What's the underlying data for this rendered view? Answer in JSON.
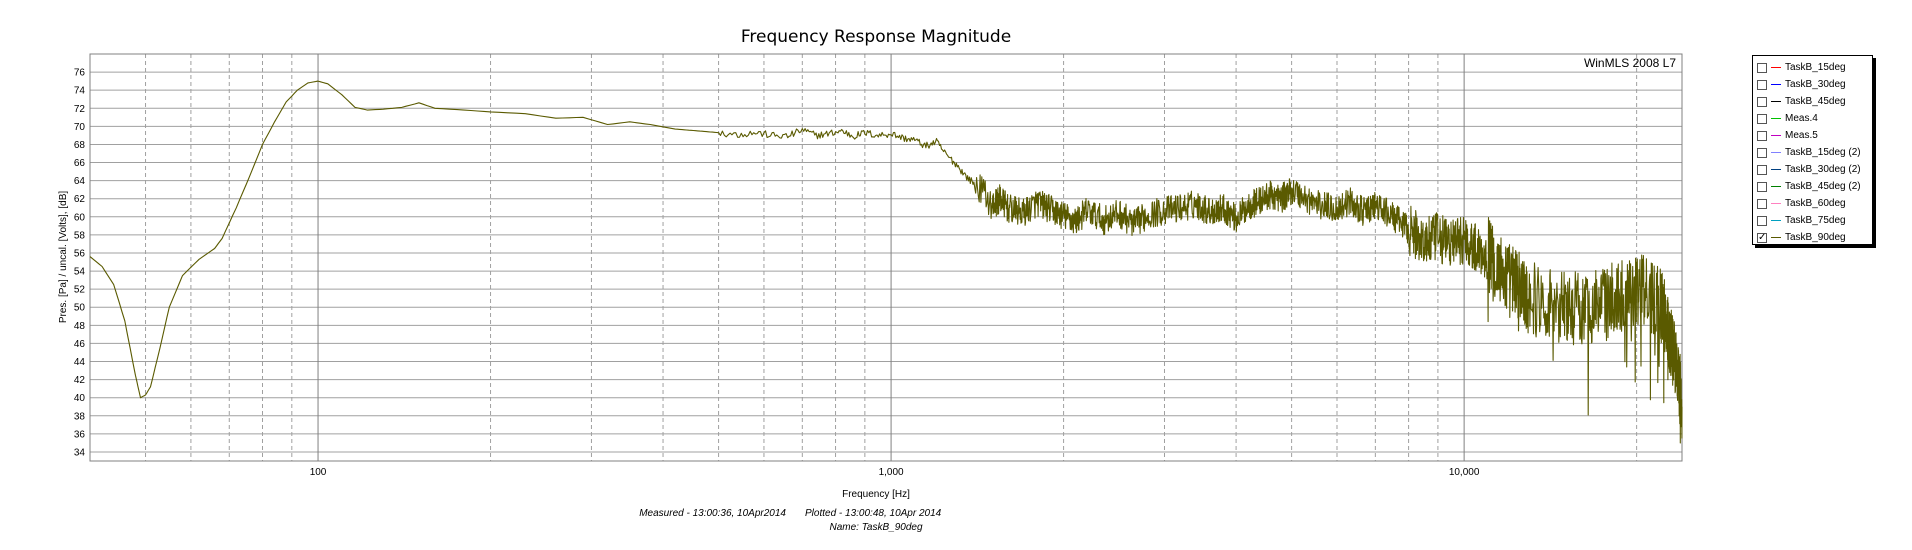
{
  "chart_data": {
    "type": "line",
    "title": "Frequency Response Magnitude",
    "watermark": "WinMLS 2008 L7",
    "xlabel": "Frequency [Hz]",
    "ylabel": "Pres. [Pa] / uncal. [Volts], [dB]",
    "xscale": "log",
    "xlim": [
      40,
      24000
    ],
    "ylim": [
      33,
      78
    ],
    "x_tick_labels": [
      {
        "value": 100,
        "label": "100"
      },
      {
        "value": 1000,
        "label": "1,000"
      },
      {
        "value": 10000,
        "label": "10,000"
      }
    ],
    "y_ticks": [
      34,
      36,
      38,
      40,
      42,
      44,
      46,
      48,
      50,
      52,
      54,
      56,
      58,
      60,
      62,
      64,
      66,
      68,
      70,
      72,
      74,
      76
    ],
    "grid": true,
    "legend_position": "right",
    "footer": {
      "measured": "Measured - 13:00:36, 10Apr2014",
      "plotted": "Plotted - 13:00:48, 10Apr 2014",
      "name": "Name: TaskB_90deg"
    },
    "legend": [
      {
        "label": "TaskB_15deg",
        "color": "#ff0000",
        "checked": false
      },
      {
        "label": "TaskB_30deg",
        "color": "#0000ff",
        "checked": false
      },
      {
        "label": "TaskB_45deg",
        "color": "#000000",
        "checked": false
      },
      {
        "label": "Meas.4",
        "color": "#00c000",
        "checked": false
      },
      {
        "label": "Meas.5",
        "color": "#c000c0",
        "checked": false
      },
      {
        "label": "TaskB_15deg (2)",
        "color": "#8080ff",
        "checked": false
      },
      {
        "label": "TaskB_30deg (2)",
        "color": "#004080",
        "checked": false
      },
      {
        "label": "TaskB_45deg (2)",
        "color": "#008000",
        "checked": false
      },
      {
        "label": "TaskB_60deg",
        "color": "#ff80c0",
        "checked": false
      },
      {
        "label": "TaskB_75deg",
        "color": "#00a0c0",
        "checked": false
      },
      {
        "label": "TaskB_90deg",
        "color": "#5a5a00",
        "checked": true
      }
    ],
    "series": [
      {
        "name": "TaskB_90deg",
        "color": "#5a5a00",
        "points": [
          [
            40,
            55.6
          ],
          [
            42,
            54.5
          ],
          [
            44,
            52.5
          ],
          [
            46,
            48.5
          ],
          [
            48,
            42.5
          ],
          [
            49,
            40.0
          ],
          [
            50,
            40.3
          ],
          [
            51,
            41.2
          ],
          [
            53,
            45.5
          ],
          [
            55,
            50.0
          ],
          [
            58,
            53.5
          ],
          [
            62,
            55.3
          ],
          [
            66,
            56.5
          ],
          [
            68,
            57.6
          ],
          [
            72,
            61.0
          ],
          [
            76,
            64.5
          ],
          [
            80,
            68.0
          ],
          [
            84,
            70.5
          ],
          [
            88,
            72.7
          ],
          [
            92,
            74.0
          ],
          [
            96,
            74.8
          ],
          [
            100,
            75.0
          ],
          [
            104,
            74.7
          ],
          [
            110,
            73.5
          ],
          [
            116,
            72.1
          ],
          [
            122,
            71.8
          ],
          [
            130,
            71.9
          ],
          [
            140,
            72.1
          ],
          [
            150,
            72.6
          ],
          [
            160,
            72.0
          ],
          [
            180,
            71.8
          ],
          [
            200,
            71.6
          ],
          [
            230,
            71.4
          ],
          [
            260,
            70.9
          ],
          [
            290,
            71.0
          ],
          [
            320,
            70.2
          ],
          [
            350,
            70.5
          ],
          [
            380,
            70.2
          ],
          [
            420,
            69.7
          ],
          [
            460,
            69.5
          ],
          [
            500,
            69.3
          ],
          [
            540,
            69.1
          ],
          [
            580,
            69.3
          ],
          [
            620,
            69.0
          ],
          [
            660,
            68.9
          ],
          [
            700,
            69.6
          ],
          [
            740,
            69.0
          ],
          [
            780,
            69.2
          ],
          [
            820,
            69.5
          ],
          [
            860,
            68.9
          ],
          [
            900,
            69.3
          ],
          [
            950,
            69.0
          ],
          [
            1000,
            69.2
          ],
          [
            1050,
            68.7
          ],
          [
            1100,
            68.5
          ],
          [
            1150,
            67.8
          ],
          [
            1200,
            68.3
          ],
          [
            1250,
            66.8
          ],
          [
            1300,
            65.8
          ],
          [
            1350,
            64.5
          ],
          [
            1400,
            63.6
          ],
          [
            1450,
            62.8
          ],
          [
            1500,
            61.2
          ],
          [
            1550,
            62.0
          ],
          [
            1600,
            60.9
          ],
          [
            1700,
            60.4
          ],
          [
            1800,
            61.6
          ],
          [
            1900,
            60.8
          ],
          [
            2000,
            60.1
          ],
          [
            2100,
            59.5
          ],
          [
            2200,
            60.7
          ],
          [
            2350,
            59.6
          ],
          [
            2500,
            60.4
          ],
          [
            2650,
            59.2
          ],
          [
            2800,
            60.2
          ],
          [
            3000,
            60.7
          ],
          [
            3200,
            61.0
          ],
          [
            3400,
            61.4
          ],
          [
            3600,
            60.6
          ],
          [
            3800,
            61.0
          ],
          [
            4000,
            59.8
          ],
          [
            4200,
            61.2
          ],
          [
            4400,
            61.8
          ],
          [
            4600,
            62.4
          ],
          [
            4800,
            62.0
          ],
          [
            5000,
            63.0
          ],
          [
            5300,
            62.0
          ],
          [
            5600,
            61.3
          ],
          [
            6000,
            60.9
          ],
          [
            6300,
            61.7
          ],
          [
            6700,
            60.5
          ],
          [
            7000,
            61.2
          ],
          [
            7400,
            60.3
          ],
          [
            7800,
            59.2
          ],
          [
            8200,
            58.0
          ],
          [
            8600,
            57.2
          ],
          [
            9000,
            57.7
          ],
          [
            9500,
            57.1
          ],
          [
            10000,
            57.6
          ],
          [
            10500,
            56.4
          ],
          [
            11000,
            55.9
          ],
          [
            11500,
            54.2
          ],
          [
            12000,
            53.0
          ],
          [
            12500,
            52.3
          ],
          [
            13000,
            51.0
          ],
          [
            14000,
            50.6
          ],
          [
            15000,
            50.1
          ],
          [
            16000,
            49.8
          ],
          [
            17000,
            50.2
          ],
          [
            18000,
            50.6
          ],
          [
            19000,
            51.5
          ],
          [
            20000,
            52.0
          ],
          [
            21000,
            51.3
          ],
          [
            22000,
            50.5
          ],
          [
            22500,
            48.5
          ],
          [
            23000,
            46.0
          ],
          [
            23500,
            43.5
          ],
          [
            24000,
            39.0
          ]
        ]
      }
    ]
  }
}
